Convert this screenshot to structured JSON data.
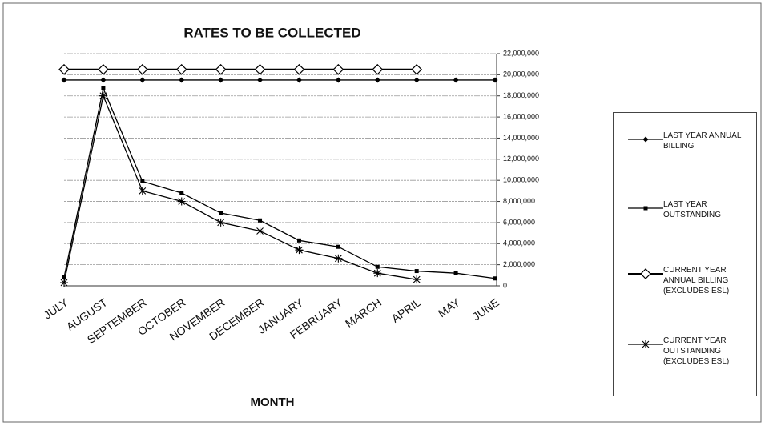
{
  "chart_data": {
    "type": "line",
    "title": "RATES TO BE COLLECTED",
    "x_label": "MONTH",
    "categories": [
      "JULY",
      "AUGUST",
      "SEPTEMBER",
      "OCTOBER",
      "NOVEMBER",
      "DECEMBER",
      "JANUARY",
      "FEBRUARY",
      "MARCH",
      "APRIL",
      "MAY",
      "JUNE"
    ],
    "series": [
      {
        "name": "LAST YEAR ANNUAL BILLING",
        "color": "#000000",
        "marker": "diamond",
        "values": [
          19500000,
          19500000,
          19500000,
          19500000,
          19500000,
          19500000,
          19500000,
          19500000,
          19500000,
          19500000,
          19500000,
          19500000
        ]
      },
      {
        "name": "LAST YEAR OUTSTANDING",
        "color": "#000000",
        "marker": "square",
        "values": [
          800000,
          18700000,
          9900000,
          8800000,
          6900000,
          6200000,
          4300000,
          3700000,
          1800000,
          1400000,
          1200000,
          700000
        ]
      },
      {
        "name": "CURRENT YEAR ANNUAL BILLING (EXCLUDES ESL)",
        "color": "#000000",
        "marker": "open-diamond",
        "values": [
          20500000,
          20500000,
          20500000,
          20500000,
          20500000,
          20500000,
          20500000,
          20500000,
          20500000,
          20500000,
          null,
          null
        ]
      },
      {
        "name": "CURRENT YEAR OUTSTANDING (EXCLUDES ESL)",
        "color": "#000000",
        "marker": "asterisk",
        "values": [
          300000,
          18000000,
          9000000,
          8000000,
          6000000,
          5200000,
          3400000,
          2600000,
          1200000,
          600000,
          null,
          null
        ]
      }
    ],
    "ylim": [
      0,
      22000000
    ],
    "yticks": [
      0,
      {
        "value": 2000000,
        "label": "2,000,000"
      },
      {
        "value": 4000000,
        "label": "4,000,000"
      },
      {
        "value": 6000000,
        "label": "6,000,000"
      },
      {
        "value": 8000000,
        "label": "8,000,000"
      },
      {
        "value": 10000000,
        "label": "10,000,000"
      },
      {
        "value": 12000000,
        "label": "12,000,000"
      },
      {
        "value": 14000000,
        "label": "14,000,000"
      },
      {
        "value": 16000000,
        "label": "16,000,000"
      },
      {
        "value": 18000000,
        "label": "18,000,000"
      },
      {
        "value": 20000000,
        "label": "20,000,000"
      },
      {
        "value": 22000000,
        "label": "22,000,000"
      }
    ],
    "grid": true,
    "legend": "right"
  }
}
